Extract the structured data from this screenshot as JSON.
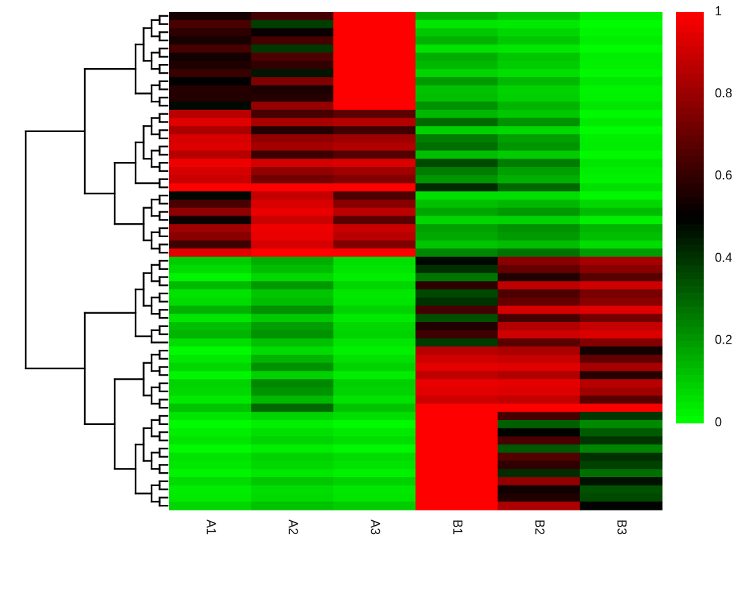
{
  "chart_data": {
    "type": "heatmap",
    "title": "",
    "xlabel": "",
    "ylabel": "",
    "columns": [
      "A1",
      "A2",
      "A3",
      "B1",
      "B2",
      "B3"
    ],
    "value_range": [
      0,
      1
    ],
    "colorbar": {
      "ticks": [
        0,
        0.2,
        0.4,
        0.6,
        0.8,
        1
      ],
      "tick_labels": [
        "0",
        "0.2",
        "0.4",
        "0.6",
        "0.8",
        "1"
      ],
      "low_color": "#00ff00",
      "mid_color": "#000000",
      "high_color": "#ff0000"
    },
    "legend_position": "right",
    "row_dendrogram": true,
    "row_clusters": [
      {
        "row_count": 30,
        "sub_clusters": [
          {
            "row_count": 12,
            "A1": [
              0.66,
              0.48
            ],
            "A2": [
              0.33,
              0.8
            ],
            "A3": [
              1.0,
              1.0
            ],
            "B1": [
              0.03,
              0.22
            ],
            "B2": [
              0.03,
              0.15
            ],
            "B3": [
              0.0,
              0.05
            ]
          },
          {
            "row_count": 10,
            "A1": [
              0.82,
              1.0
            ],
            "A2": [
              0.52,
              1.0
            ],
            "A3": [
              0.58,
              1.0
            ],
            "B1": [
              0.05,
              0.42
            ],
            "B2": [
              0.05,
              0.3
            ],
            "B3": [
              0.0,
              0.06
            ]
          },
          {
            "row_count": 8,
            "A1": [
              0.45,
              0.95
            ],
            "A2": [
              0.88,
              1.0
            ],
            "A3": [
              0.62,
              1.0
            ],
            "B1": [
              0.05,
              0.24
            ],
            "B2": [
              0.05,
              0.28
            ],
            "B3": [
              0.0,
              0.2
            ]
          }
        ]
      },
      {
        "row_count": 31,
        "sub_clusters": [
          {
            "row_count": 11,
            "A1": [
              0.0,
              0.18
            ],
            "A2": [
              0.05,
              0.25
            ],
            "A3": [
              0.02,
              0.1
            ],
            "B1": [
              0.2,
              0.72
            ],
            "B2": [
              0.5,
              1.0
            ],
            "B3": [
              0.62,
              1.0
            ]
          },
          {
            "row_count": 8,
            "A1": [
              0.0,
              0.12
            ],
            "A2": [
              0.05,
              0.3
            ],
            "A3": [
              0.02,
              0.12
            ],
            "B1": [
              0.85,
              1.0
            ],
            "B2": [
              0.82,
              1.0
            ],
            "B3": [
              0.5,
              1.0
            ]
          },
          {
            "row_count": 12,
            "A1": [
              0.0,
              0.08
            ],
            "A2": [
              0.02,
              0.12
            ],
            "A3": [
              0.0,
              0.1
            ],
            "B1": [
              1.0,
              1.0
            ],
            "B2": [
              0.25,
              0.85
            ],
            "B3": [
              0.2,
              0.5
            ]
          }
        ]
      }
    ]
  }
}
